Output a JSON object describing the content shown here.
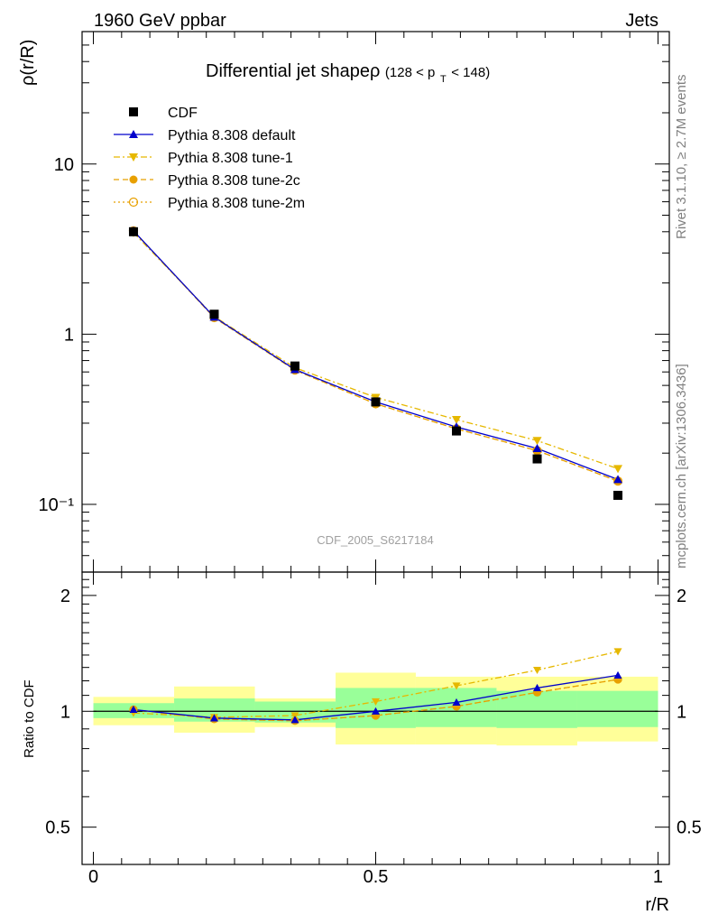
{
  "header": {
    "left": "1960 GeV ppbar",
    "right": "Jets",
    "rivet": "Rivet 3.1.10, ≥ 2.7M events",
    "mcplots": "mcplots.cern.ch [arXiv:1306.3436]",
    "analysis_id": "CDF_2005_S6217184"
  },
  "chart_data": {
    "type": "line",
    "title": "Differential jet shapeρ",
    "title_cut_prefix": "(128 < p",
    "title_cut_sub": "T",
    "title_cut_suffix": " < 148)",
    "xlabel": "r/R",
    "ylabel": "ρ(r/R)",
    "ratio_ylabel": "Ratio to CDF",
    "y_scale": "log",
    "xlim": [
      -0.02,
      1.02
    ],
    "ylim": [
      0.04,
      60
    ],
    "ratio_ylim": [
      0.4,
      2.3
    ],
    "legend_position": "top-left",
    "x_ticks": [
      "0",
      "0.5",
      "1"
    ],
    "y_ticks_main": [
      "10",
      "1",
      "10⁻¹"
    ],
    "y_ticks_ratio": [
      "2",
      "1",
      "0.5"
    ],
    "x": [
      0.071,
      0.214,
      0.357,
      0.5,
      0.643,
      0.786,
      0.929
    ],
    "bin_edges": [
      0.0,
      0.143,
      0.286,
      0.429,
      0.571,
      0.714,
      0.857,
      1.0
    ],
    "series": [
      {
        "name": "CDF",
        "color": "#000000",
        "marker": "square",
        "values": [
          4.0,
          1.31,
          0.65,
          0.4,
          0.27,
          0.185,
          0.113
        ]
      },
      {
        "name": "Pythia 8.308 default",
        "color": "#0000cc",
        "marker": "triangle-up",
        "line": "solid",
        "values": [
          4.05,
          1.26,
          0.62,
          0.4,
          0.285,
          0.213,
          0.14
        ],
        "ratio": [
          1.01,
          0.96,
          0.95,
          1.0,
          1.055,
          1.15,
          1.24
        ]
      },
      {
        "name": "Pythia 8.308 tune-1",
        "color": "#e6b800",
        "marker": "triangle-down",
        "line": "dashdot",
        "values": [
          3.95,
          1.27,
          0.635,
          0.425,
          0.315,
          0.237,
          0.162
        ],
        "ratio": [
          0.99,
          0.965,
          0.975,
          1.06,
          1.165,
          1.28,
          1.43
        ]
      },
      {
        "name": "Pythia 8.308 tune-2c",
        "color": "#e8a000",
        "marker": "circle",
        "line": "dashed",
        "values": [
          4.05,
          1.25,
          0.615,
          0.39,
          0.278,
          0.207,
          0.137
        ],
        "ratio": [
          1.01,
          0.955,
          0.945,
          0.975,
          1.03,
          1.12,
          1.21
        ]
      },
      {
        "name": "Pythia 8.308 tune-2m",
        "color": "#e8a000",
        "marker": "open-circle",
        "line": "dotted",
        "values": [
          4.05,
          1.25,
          0.615,
          0.39,
          0.278,
          0.207,
          0.137
        ],
        "ratio": [
          1.01,
          0.955,
          0.945,
          0.975,
          1.03,
          1.12,
          1.21
        ]
      }
    ],
    "ratio_band_stat": [
      [
        0.96,
        1.05
      ],
      [
        0.94,
        1.08
      ],
      [
        0.935,
        1.06
      ],
      [
        0.905,
        1.15
      ],
      [
        0.91,
        1.15
      ],
      [
        0.905,
        1.13
      ],
      [
        0.91,
        1.13
      ]
    ],
    "ratio_band_total": [
      [
        0.92,
        1.09
      ],
      [
        0.88,
        1.16
      ],
      [
        0.91,
        1.08
      ],
      [
        0.82,
        1.26
      ],
      [
        0.82,
        1.23
      ],
      [
        0.815,
        1.23
      ],
      [
        0.835,
        1.23
      ]
    ],
    "colors": {
      "band_stat": "#99ff99",
      "band_total": "#ffff99"
    }
  }
}
